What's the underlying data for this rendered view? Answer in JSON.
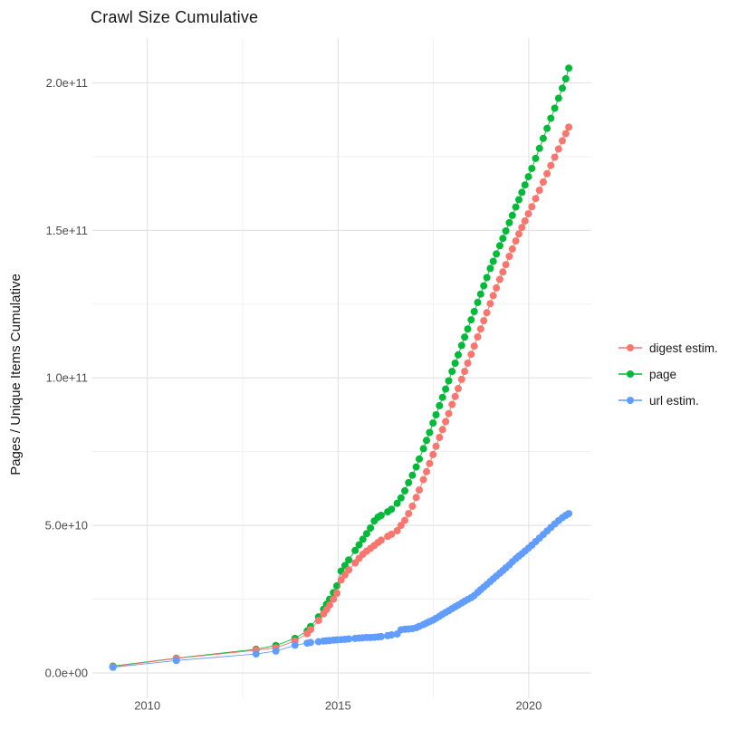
{
  "page": {
    "title": "Crawl Size Cumulative"
  },
  "chart_data": {
    "type": "scatter",
    "title": "Crawl Size Cumulative",
    "xlabel": "",
    "ylabel": "Pages / Unique Items Cumulative",
    "unit_note": "values_e9 are in units of 1e9 (billions)",
    "grid": true,
    "legend_position": "right",
    "x_ticks": [
      {
        "label": "2010",
        "year": 2010
      },
      {
        "label": "2015",
        "year": 2015
      },
      {
        "label": "2020",
        "year": 2020
      }
    ],
    "y_ticks": [
      {
        "label": "0.0e+00",
        "value_e9": 0
      },
      {
        "label": "5.0e+10",
        "value_e9": 50
      },
      {
        "label": "1.0e+11",
        "value_e9": 100
      },
      {
        "label": "1.5e+11",
        "value_e9": 150
      },
      {
        "label": "2.0e+11",
        "value_e9": 200
      }
    ],
    "x_minor": [
      2012.5,
      2017.5
    ],
    "y_minor_e9": [
      25,
      75,
      125,
      175
    ],
    "x_domain": [
      2008.56,
      2021.64
    ],
    "y_domain_e9": [
      -8.6,
      215.2
    ],
    "years": [
      2009.1,
      2010.76,
      2012.85,
      2013.37,
      2013.87,
      2014.19,
      2014.28,
      2014.49,
      2014.62,
      2014.7,
      2014.78,
      2014.88,
      2014.97,
      2015.08,
      2015.18,
      2015.28,
      2015.45,
      2015.55,
      2015.65,
      2015.75,
      2015.85,
      2015.95,
      2016.05,
      2016.13,
      2016.3,
      2016.4,
      2016.55,
      2016.65,
      2016.75,
      2016.85,
      2016.95,
      2017.05,
      2017.13,
      2017.24,
      2017.32,
      2017.4,
      2017.49,
      2017.57,
      2017.66,
      2017.74,
      2017.82,
      2017.9,
      2017.99,
      2018.07,
      2018.15,
      2018.24,
      2018.32,
      2018.4,
      2018.49,
      2018.57,
      2018.66,
      2018.74,
      2018.82,
      2018.9,
      2018.99,
      2019.07,
      2019.15,
      2019.24,
      2019.32,
      2019.4,
      2019.49,
      2019.57,
      2019.66,
      2019.74,
      2019.82,
      2019.9,
      2019.99,
      2020.08,
      2020.18,
      2020.28,
      2020.38,
      2020.48,
      2020.58,
      2020.68,
      2020.78,
      2020.88,
      2020.97,
      2021.05
    ],
    "series": [
      {
        "name": "digest estim.",
        "color": "#F8766D",
        "values_e9": [
          2.1,
          4.9,
          7.7,
          8.5,
          10.8,
          13.3,
          14.7,
          17.8,
          20.0,
          21.5,
          23.0,
          25.0,
          27.0,
          31.5,
          33.2,
          34.9,
          37.3,
          38.8,
          40.2,
          41.3,
          42.2,
          43.2,
          44.2,
          45.0,
          46.3,
          47.0,
          48.2,
          50.0,
          51.7,
          54.0,
          56.5,
          59.5,
          62.0,
          65.5,
          68.2,
          71.0,
          74.0,
          76.8,
          79.8,
          82.5,
          85.2,
          87.9,
          91.0,
          93.7,
          96.4,
          99.5,
          102.2,
          105.0,
          108.0,
          110.8,
          113.9,
          116.6,
          119.4,
          122.1,
          125.2,
          127.9,
          130.5,
          133.4,
          135.9,
          138.4,
          141.2,
          143.7,
          146.4,
          148.8,
          151.0,
          153.2,
          155.6,
          158.0,
          160.8,
          163.6,
          166.4,
          169.2,
          172.0,
          174.8,
          177.6,
          180.4,
          182.8,
          185.0
        ]
      },
      {
        "name": "page",
        "color": "#00BA38",
        "values_e9": [
          2.3,
          5.0,
          8.0,
          9.3,
          11.7,
          14.2,
          15.7,
          19.0,
          21.6,
          23.3,
          25.0,
          27.2,
          29.5,
          34.5,
          36.4,
          38.3,
          41.5,
          43.4,
          45.3,
          47.2,
          49.1,
          51.5,
          52.8,
          53.4,
          54.6,
          55.5,
          57.5,
          59.3,
          61.7,
          64.5,
          67.0,
          69.8,
          72.5,
          76.0,
          78.8,
          81.5,
          84.7,
          87.5,
          90.6,
          93.4,
          96.2,
          99.0,
          102.2,
          105.0,
          107.8,
          111.0,
          113.8,
          116.6,
          119.7,
          122.5,
          125.6,
          128.4,
          131.2,
          134.0,
          137.1,
          139.5,
          142.0,
          144.8,
          147.3,
          149.8,
          152.6,
          155.1,
          157.9,
          160.4,
          162.9,
          165.4,
          168.2,
          171.0,
          174.4,
          177.8,
          181.2,
          184.6,
          188.0,
          191.4,
          194.8,
          198.2,
          201.4,
          205.0
        ]
      },
      {
        "name": "url estim.",
        "color": "#619CFF",
        "values_e9": [
          1.9,
          4.2,
          6.4,
          7.4,
          9.4,
          10.1,
          10.3,
          10.6,
          10.8,
          10.9,
          11.0,
          11.1,
          11.2,
          11.3,
          11.4,
          11.5,
          11.7,
          11.8,
          11.9,
          12.0,
          12.0,
          12.1,
          12.2,
          12.3,
          12.6,
          12.9,
          13.2,
          14.6,
          14.8,
          14.9,
          15.0,
          15.3,
          15.8,
          16.4,
          16.9,
          17.4,
          17.9,
          18.5,
          19.2,
          19.9,
          20.5,
          21.1,
          21.8,
          22.4,
          23.0,
          23.7,
          24.3,
          24.9,
          25.5,
          26.2,
          27.3,
          28.2,
          29.1,
          30.0,
          31.0,
          31.9,
          32.8,
          33.8,
          34.7,
          35.6,
          36.6,
          37.7,
          38.7,
          39.6,
          40.4,
          41.3,
          42.3,
          43.3,
          44.5,
          45.7,
          46.9,
          48.1,
          49.3,
          50.5,
          51.6,
          52.6,
          53.4,
          54.0
        ]
      }
    ],
    "draw_order": [
      1,
      0,
      2
    ],
    "colors": {
      "major_grid": "#e4e4e4",
      "minor_grid": "#f1f1f1",
      "tick_text": "#4d4d4d"
    },
    "point_radius": 4
  }
}
